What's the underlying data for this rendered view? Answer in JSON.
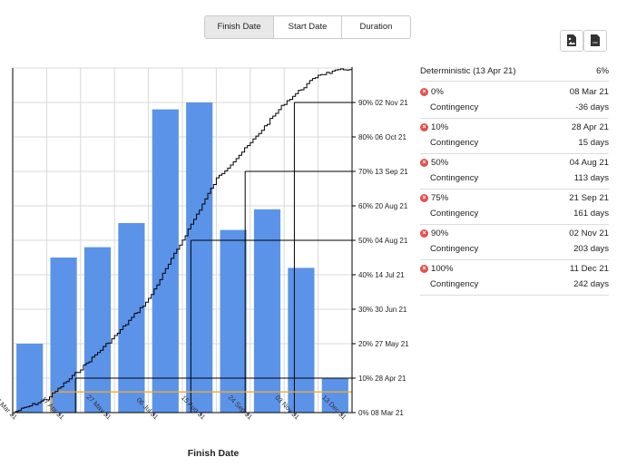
{
  "tabs": {
    "finish": "Finish Date",
    "start": "Start Date",
    "duration": "Duration"
  },
  "export": {
    "image_icon": "image-export-icon",
    "csv_icon": "csv-export-icon",
    "csv_text": "csv"
  },
  "colors": {
    "bar": "#5b93e9",
    "line": "#000000",
    "deterministic_line": "#f0a830",
    "grid": "#d9d9d9",
    "remove_icon": "#e0524f"
  },
  "results": {
    "deterministic_label": "Deterministic (13 Apr 21)",
    "deterministic_pct": "6%",
    "contingency_label": "Contingency",
    "rows": [
      {
        "pct": "0%",
        "date": "08 Mar 21",
        "contingency": "-36 days"
      },
      {
        "pct": "10%",
        "date": "28 Apr 21",
        "contingency": "15 days"
      },
      {
        "pct": "50%",
        "date": "04 Aug 21",
        "contingency": "113 days"
      },
      {
        "pct": "75%",
        "date": "21 Sep 21",
        "contingency": "161 days"
      },
      {
        "pct": "90%",
        "date": "02 Nov 21",
        "contingency": "203 days"
      },
      {
        "pct": "100%",
        "date": "11 Dec 21",
        "contingency": "242 days"
      }
    ]
  },
  "chart_data": {
    "type": "bar",
    "xlabel": "Finish Date",
    "x_ticks": [
      "08 Mar 21",
      "17 Apr 21",
      "27 May 21",
      "06 Jul 21",
      "15 Aug 21",
      "24 Sep 21",
      "03 Nov 21",
      "13 Dec 21"
    ],
    "bar_heights_relative": [
      20,
      45,
      48,
      55,
      88,
      90,
      53,
      59,
      42,
      10
    ],
    "cumulative_line": "cumulative probability (0–100%) vs finish date",
    "right_axis_ticks": [
      "0% 08 Mar 21",
      "10% 28 Apr 21",
      "20% 27 May 21",
      "30% 30 Jun 21",
      "40% 14 Jul 21",
      "50% 04 Aug 21",
      "60% 20 Aug 21",
      "70% 13 Sep 21",
      "80% 06 Oct 21",
      "90% 02 Nov 21"
    ],
    "percentile_markers": [
      {
        "pct": 10,
        "x_index": 1.85
      },
      {
        "pct": 50,
        "x_index": 5.25
      },
      {
        "pct": 70,
        "x_index": 6.85
      },
      {
        "pct": 90,
        "x_index": 8.3
      }
    ],
    "deterministic_marker": {
      "pct": 6,
      "x_index": 1.15
    },
    "grid": true
  }
}
